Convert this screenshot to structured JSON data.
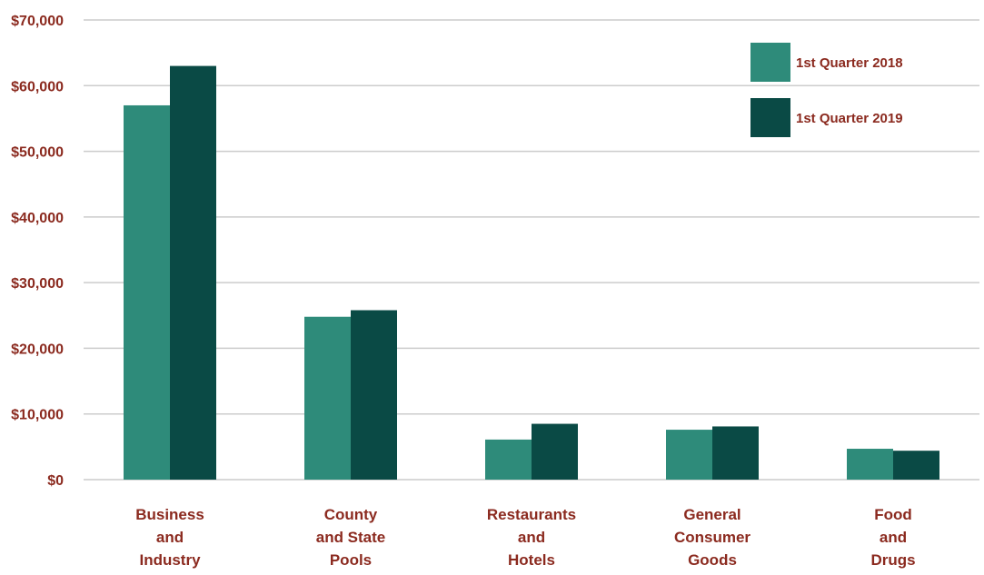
{
  "chart_data": {
    "type": "bar",
    "categories": [
      [
        "Business",
        "and",
        "Industry"
      ],
      [
        "County",
        "and State",
        "Pools"
      ],
      [
        "Restaurants",
        "and",
        "Hotels"
      ],
      [
        "General",
        "Consumer",
        "Goods"
      ],
      [
        "Food",
        "and",
        "Drugs"
      ]
    ],
    "series": [
      {
        "name": "1st Quarter 2018",
        "values": [
          57000,
          24800,
          6100,
          7600,
          4700
        ],
        "color": "#2e8b7a"
      },
      {
        "name": "1st Quarter 2019",
        "values": [
          63000,
          25800,
          8500,
          8100,
          4400
        ],
        "color": "#0a4a45"
      }
    ],
    "yticks": [
      "$0",
      "$10,000",
      "$20,000",
      "$30,000",
      "$40,000",
      "$50,000",
      "$60,000",
      "$70,000"
    ],
    "ylim": [
      0,
      70000
    ],
    "grid": true,
    "legend_position": "top-right",
    "label_color": "#8b2a1f",
    "grid_color": "#cccccc"
  }
}
